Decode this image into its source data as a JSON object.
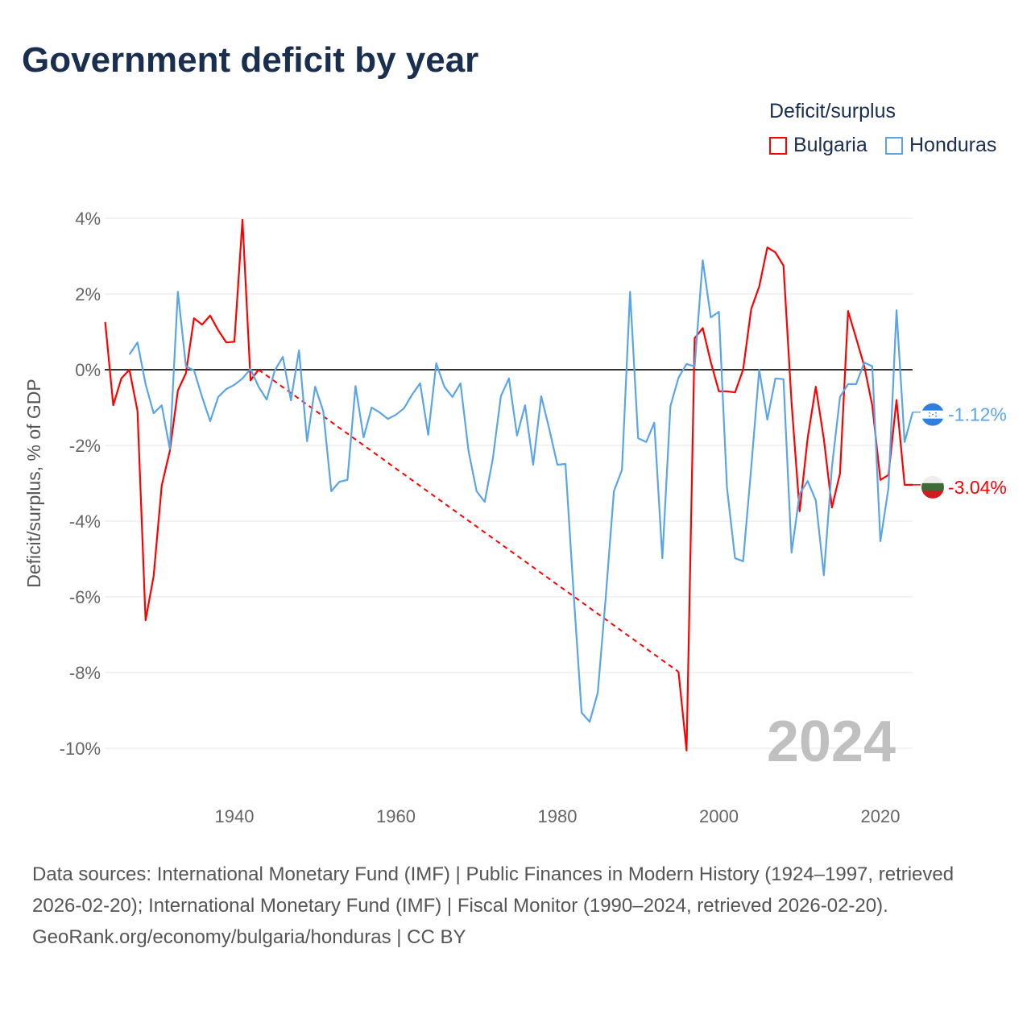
{
  "title": "Government deficit by year",
  "legend": {
    "title": "Deficit/surplus",
    "items": [
      {
        "label": "Bulgaria",
        "color": "#ff0000"
      },
      {
        "label": "Honduras",
        "color": "#5aa5e8"
      }
    ]
  },
  "year_label": "2024",
  "end_labels": {
    "honduras": "-1.12%",
    "bulgaria": "-3.04%"
  },
  "footer": {
    "sources": "Data sources: International Monetary Fund (IMF) | Public Finances in Modern History (1924–1997, retrieved 2026-02-20); International Monetary Fund (IMF) | Fiscal Monitor (1990–2024, retrieved 2026-02-20).",
    "credit": "GeoRank.org/economy/bulgaria/honduras | CC BY"
  },
  "chart_data": {
    "type": "line",
    "title": "Government deficit by year",
    "xlabel": "",
    "ylabel": "Deficit/surplus, % of GDP",
    "xlim": [
      1924,
      2024
    ],
    "ylim": [
      -10,
      4
    ],
    "xticks": [
      1940,
      1960,
      1980,
      2000,
      2020
    ],
    "yticks": [
      {
        "v": 4,
        "label": "4%"
      },
      {
        "v": 2,
        "label": "2%"
      },
      {
        "v": 0,
        "label": "0%"
      },
      {
        "v": -2,
        "label": "-2%"
      },
      {
        "v": -4,
        "label": "-4%"
      },
      {
        "v": -6,
        "label": "-6%"
      },
      {
        "v": -8,
        "label": "-8%"
      },
      {
        "v": -10,
        "label": "-10%"
      }
    ],
    "grid": true,
    "legend_position": "top-right",
    "series": [
      {
        "name": "Bulgaria",
        "color": "#ff0000",
        "start": 1924,
        "values": [
          1.26,
          -0.94,
          -0.23,
          0,
          -1.09,
          -6.62,
          -5.45,
          -3.06,
          -2.15,
          -0.55,
          -0.09,
          1.36,
          1.19,
          1.43,
          1.04,
          0.72,
          0.74,
          3.96,
          -0.28,
          0,
          null,
          null,
          null,
          null,
          null,
          null,
          null,
          null,
          null,
          null,
          null,
          null,
          null,
          null,
          null,
          null,
          null,
          null,
          null,
          null,
          null,
          null,
          null,
          null,
          null,
          null,
          null,
          null,
          null,
          null,
          null,
          null,
          null,
          null,
          null,
          null,
          null,
          null,
          null,
          null,
          null,
          null,
          null,
          null,
          null,
          null,
          null,
          null,
          null,
          null,
          null,
          -7.98,
          -10.06,
          0.83,
          1.1,
          0.2,
          -0.57,
          -0.57,
          -0.6,
          0,
          1.6,
          2.2,
          3.23,
          3.1,
          2.75,
          -0.87,
          -3.74,
          -1.8,
          -0.45,
          -1.83,
          -3.64,
          -2.74,
          1.55,
          0.83,
          0.1,
          -0.95,
          -2.91,
          -2.78,
          -0.8,
          -3.04,
          -3.04
        ]
      },
      {
        "name": "Honduras",
        "color": "#5aa5e8",
        "start": 1927,
        "values": [
          0.4,
          0.72,
          -0.38,
          -1.15,
          -0.94,
          -2.09,
          2.06,
          0.09,
          -0.02,
          -0.72,
          -1.36,
          -0.72,
          -0.51,
          -0.4,
          -0.23,
          0.02,
          -0.45,
          -0.79,
          -0.02,
          0.34,
          -0.81,
          0.51,
          -1.89,
          -0.45,
          -1.09,
          -3.21,
          -2.96,
          -2.91,
          -0.43,
          -1.79,
          -1.0,
          -1.13,
          -1.3,
          -1.19,
          -1.02,
          -0.66,
          -0.36,
          -1.72,
          0.17,
          -0.45,
          -0.72,
          -0.36,
          -2.15,
          -3.21,
          -3.49,
          -2.36,
          -0.7,
          -0.23,
          -1.74,
          -0.94,
          -2.51,
          -0.7,
          -1.57,
          -2.51,
          -2.49,
          -5.87,
          -9.06,
          -9.3,
          -8.53,
          -5.98,
          -3.21,
          -2.64,
          2.06,
          -1.81,
          -1.91,
          -1.4,
          -4.98,
          -0.96,
          -0.21,
          0.15,
          0.09,
          2.89,
          1.38,
          1.53,
          -3.11,
          -4.98,
          -5.06,
          -2.6,
          0.0,
          -1.32,
          -0.23,
          -0.25,
          -4.83,
          -3.28,
          -2.94,
          -3.45,
          -5.43,
          -2.57,
          -0.72,
          -0.38,
          -0.38,
          0.19,
          0.09,
          -4.53,
          -3.13,
          1.57,
          -1.91,
          -1.12
        ]
      }
    ]
  }
}
